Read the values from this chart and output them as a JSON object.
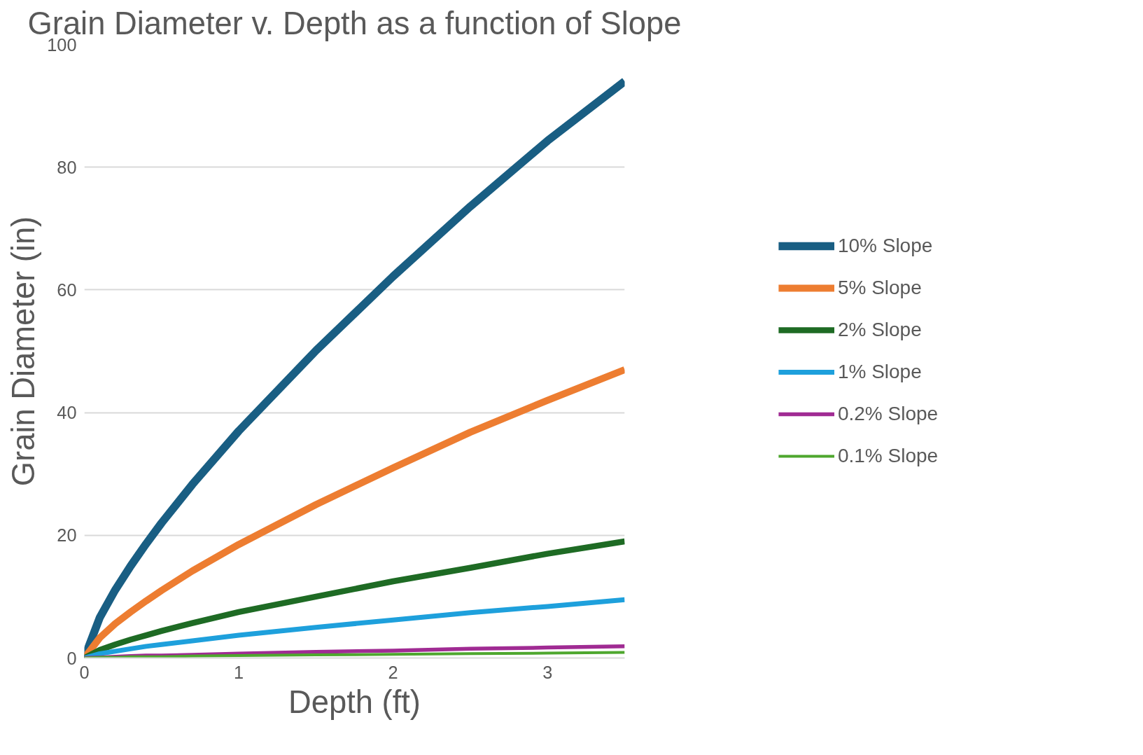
{
  "chart_data": {
    "type": "line",
    "title": "Grain Diameter v. Depth as a function of Slope",
    "xlabel": "Depth (ft)",
    "ylabel": "Grain Diameter (in)",
    "x": [
      0,
      0.1,
      0.2,
      0.3,
      0.4,
      0.5,
      0.7,
      1,
      1.5,
      2,
      2.5,
      3,
      3.5
    ],
    "series": [
      {
        "name": "10% Slope",
        "color": "#195e83",
        "values": [
          0,
          6.6,
          11.1,
          15,
          18.6,
          22,
          28.3,
          37,
          50.1,
          62.2,
          73.6,
          84.3,
          94
        ]
      },
      {
        "name": "5% Slope",
        "color": "#ed7d31",
        "values": [
          0,
          3.3,
          5.6,
          7.5,
          9.3,
          11,
          14.2,
          18.5,
          25,
          31,
          36.8,
          42,
          47
        ]
      },
      {
        "name": "2% Slope",
        "color": "#1e6b24",
        "values": [
          0,
          1.3,
          2.2,
          3,
          3.7,
          4.4,
          5.7,
          7.5,
          10,
          12.5,
          14.7,
          17,
          19
        ]
      },
      {
        "name": "1% Slope",
        "color": "#1ea0dc",
        "values": [
          0,
          0.7,
          1.1,
          1.5,
          1.9,
          2.2,
          2.8,
          3.7,
          5,
          6.2,
          7.4,
          8.4,
          9.5
        ]
      },
      {
        "name": "0.2% Slope",
        "color": "#a02b93",
        "values": [
          0,
          0.1,
          0.2,
          0.3,
          0.4,
          0.4,
          0.5,
          0.7,
          1,
          1.2,
          1.5,
          1.7,
          1.9
        ]
      },
      {
        "name": "0.1% Slope",
        "color": "#4ea72e",
        "values": [
          0,
          0.1,
          0.1,
          0.2,
          0.2,
          0.2,
          0.3,
          0.4,
          0.5,
          0.6,
          0.7,
          0.8,
          0.9
        ]
      }
    ],
    "xlim": [
      0,
      3.5
    ],
    "xticks": [
      0,
      1,
      2,
      3
    ],
    "ylim": [
      0,
      100
    ],
    "yticks": [
      0,
      20,
      40,
      60,
      80,
      100
    ],
    "grid": "y",
    "legend": "right",
    "marker": "none",
    "line_style": "solid"
  }
}
